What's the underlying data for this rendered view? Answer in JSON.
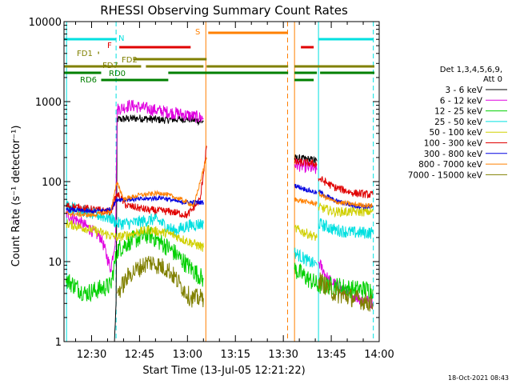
{
  "footer": {
    "date_stamp": "18-Oct-2021 08:43"
  },
  "chart_data": {
    "type": "line",
    "title": "RHESSI Observing Summary Count Rates",
    "xlabel": "Start Time (13-Jul-05 12:21:22)",
    "ylabel": "Count Rate (s⁻¹ detector⁻¹)",
    "y_scale": "log",
    "ylim": [
      1,
      10000
    ],
    "xlim": [
      "12:21:22",
      "14:00:00"
    ],
    "x_ticks": [
      "12:30",
      "12:45",
      "13:00",
      "13:15",
      "13:30",
      "13:45",
      "14:00"
    ],
    "y_ticks": [
      {
        "value": 1,
        "label": "1"
      },
      {
        "value": 10,
        "label": "10"
      },
      {
        "value": 100,
        "label": "100"
      },
      {
        "value": 1000,
        "label": "1000"
      },
      {
        "value": 10000,
        "label": "10000"
      }
    ],
    "legend": {
      "position": "right",
      "header": [
        "Det 1,3,4,5,6,9,",
        "Att 0"
      ],
      "entries": [
        {
          "label": "3 - 6 keV",
          "color": "#000000"
        },
        {
          "label": "6 - 12 keV",
          "color": "#e000e0"
        },
        {
          "label": "12 - 25 keV",
          "color": "#00d000"
        },
        {
          "label": "25 - 50 keV",
          "color": "#00e0e0"
        },
        {
          "label": "50 - 100 keV",
          "color": "#d0d000"
        },
        {
          "label": "100 - 300 keV",
          "color": "#e00000"
        },
        {
          "label": "300 - 800 keV",
          "color": "#0000e0"
        },
        {
          "label": "800 - 7000 keV",
          "color": "#ff8000"
        },
        {
          "label": "7000 - 15000 keV",
          "color": "#808000"
        }
      ]
    },
    "series": [
      {
        "name": "3 - 6 keV",
        "color": "#000000",
        "noise": 0.05,
        "segments": [
          [
            [
              "12:37:10",
              1
            ],
            [
              "12:37:40",
              3
            ],
            [
              "12:38:00",
              600
            ],
            [
              "12:45:00",
              620
            ],
            [
              "12:52:00",
              590
            ],
            [
              "13:00:00",
              610
            ],
            [
              "13:05:00",
              560
            ]
          ],
          [
            [
              "13:33:30",
              195
            ],
            [
              "13:38:00",
              190
            ],
            [
              "13:40:30",
              180
            ]
          ]
        ]
      },
      {
        "name": "6 - 12 keV",
        "color": "#e000e0",
        "noise": 0.08,
        "segments": [
          [
            [
              "12:22:00",
              40
            ],
            [
              "12:27:00",
              30
            ],
            [
              "12:33:00",
              20
            ],
            [
              "12:36:00",
              8
            ],
            [
              "12:37:30",
              20
            ],
            [
              "12:38:00",
              800
            ],
            [
              "12:42:00",
              900
            ],
            [
              "12:50:00",
              780
            ],
            [
              "12:58:00",
              700
            ],
            [
              "13:05:00",
              620
            ]
          ],
          [
            [
              "13:33:30",
              165
            ],
            [
              "13:38:00",
              150
            ],
            [
              "13:40:30",
              140
            ]
          ],
          [
            [
              "13:41:00",
              10
            ],
            [
              "13:44:00",
              6
            ],
            [
              "13:50:00",
              4
            ],
            [
              "13:58:00",
              3
            ]
          ]
        ]
      },
      {
        "name": "12 - 25 keV",
        "color": "#00d000",
        "noise": 0.12,
        "segments": [
          [
            [
              "12:22:00",
              6
            ],
            [
              "12:28:00",
              4
            ],
            [
              "12:36:00",
              5
            ],
            [
              "12:38:00",
              14
            ],
            [
              "12:42:00",
              18
            ],
            [
              "12:48:00",
              22
            ],
            [
              "12:55:00",
              14
            ],
            [
              "13:00:00",
              9
            ],
            [
              "13:05:00",
              6
            ]
          ],
          [
            [
              "13:33:30",
              8
            ],
            [
              "13:38:00",
              6
            ],
            [
              "13:41:00",
              5
            ],
            [
              "13:46:00",
              5
            ],
            [
              "13:52:00",
              4.5
            ],
            [
              "13:58:00",
              4.5
            ]
          ]
        ]
      },
      {
        "name": "25 - 50 keV",
        "color": "#00e0e0",
        "noise": 0.08,
        "segments": [
          [
            [
              "12:22:00",
              50
            ],
            [
              "12:30:00",
              40
            ],
            [
              "12:36:00",
              35
            ],
            [
              "12:38:00",
              30
            ],
            [
              "12:42:00",
              30
            ],
            [
              "12:50:00",
              34
            ],
            [
              "12:56:00",
              24
            ],
            [
              "13:00:00",
              28
            ],
            [
              "13:05:00",
              30
            ]
          ],
          [
            [
              "13:33:30",
              13
            ],
            [
              "13:38:00",
              10
            ],
            [
              "13:40:30",
              9
            ]
          ],
          [
            [
              "13:41:00",
              30
            ],
            [
              "13:46:00",
              25
            ],
            [
              "13:52:00",
              23
            ],
            [
              "13:58:00",
              23
            ]
          ]
        ]
      },
      {
        "name": "50 - 100 keV",
        "color": "#d0d000",
        "noise": 0.06,
        "segments": [
          [
            [
              "12:22:00",
              30
            ],
            [
              "12:30:00",
              25
            ],
            [
              "12:38:00",
              20
            ],
            [
              "12:42:00",
              22
            ],
            [
              "12:48:00",
              25
            ],
            [
              "12:55:00",
              22
            ],
            [
              "13:00:00",
              18
            ],
            [
              "13:05:00",
              15
            ]
          ],
          [
            [
              "13:33:30",
              26
            ],
            [
              "13:38:00",
              22
            ],
            [
              "13:40:30",
              20
            ]
          ],
          [
            [
              "13:41:00",
              48
            ],
            [
              "13:46:00",
              42
            ],
            [
              "13:52:00",
              42
            ],
            [
              "13:58:00",
              42
            ]
          ]
        ]
      },
      {
        "name": "100 - 300 keV",
        "color": "#e00000",
        "noise": 0.05,
        "segments": [
          [
            [
              "12:22:00",
              50
            ],
            [
              "12:30:00",
              45
            ],
            [
              "12:36:00",
              42
            ],
            [
              "12:38:00",
              70
            ],
            [
              "12:41:00",
              50
            ],
            [
              "12:48:00",
              44
            ],
            [
              "12:55:00",
              42
            ],
            [
              "13:00:00",
              38
            ],
            [
              "13:04:00",
              60
            ],
            [
              "13:06:00",
              280
            ]
          ],
          [
            [
              "13:33:30",
              175
            ],
            [
              "13:38:00",
              170
            ],
            [
              "13:40:30",
              165
            ]
          ],
          [
            [
              "13:41:00",
              110
            ],
            [
              "13:46:00",
              85
            ],
            [
              "13:52:00",
              72
            ],
            [
              "13:58:00",
              68
            ]
          ]
        ]
      },
      {
        "name": "300 - 800 keV",
        "color": "#0000e0",
        "noise": 0.03,
        "segments": [
          [
            [
              "12:22:00",
              45
            ],
            [
              "12:30:00",
              42
            ],
            [
              "12:36:00",
              45
            ],
            [
              "12:38:00",
              60
            ],
            [
              "12:45:00",
              60
            ],
            [
              "12:52:00",
              63
            ],
            [
              "12:58:00",
              55
            ],
            [
              "13:05:00",
              55
            ]
          ],
          [
            [
              "13:33:30",
              90
            ],
            [
              "13:37:00",
              80
            ],
            [
              "13:40:30",
              72
            ]
          ],
          [
            [
              "13:41:00",
              75
            ],
            [
              "13:46:00",
              58
            ],
            [
              "13:52:00",
              50
            ],
            [
              "13:58:00",
              48
            ]
          ]
        ]
      },
      {
        "name": "800 - 7000 keV",
        "color": "#ff8000",
        "noise": 0.03,
        "segments": [
          [
            [
              "12:22:00",
              40
            ],
            [
              "12:30:00",
              38
            ],
            [
              "12:36:00",
              42
            ],
            [
              "12:38:00",
              100
            ],
            [
              "12:40:00",
              60
            ],
            [
              "12:45:00",
              68
            ],
            [
              "12:52:00",
              72
            ],
            [
              "12:58:00",
              60
            ],
            [
              "13:02:00",
              50
            ],
            [
              "13:06:00",
              200
            ]
          ],
          [
            [
              "13:33:30",
              60
            ],
            [
              "13:38:00",
              55
            ],
            [
              "13:40:30",
              53
            ]
          ],
          [
            [
              "13:41:00",
              70
            ],
            [
              "13:46:00",
              56
            ],
            [
              "13:52:00",
              52
            ],
            [
              "13:58:00",
              50
            ]
          ]
        ]
      },
      {
        "name": "7000 - 15000 keV",
        "color": "#808000",
        "noise": 0.12,
        "segments": [
          [
            [
              "12:38:00",
              4
            ],
            [
              "12:42:00",
              7
            ],
            [
              "12:48:00",
              10
            ],
            [
              "12:54:00",
              8
            ],
            [
              "12:58:00",
              5
            ],
            [
              "13:01:00",
              3.5
            ],
            [
              "13:05:00",
              3.5
            ]
          ],
          [
            [
              "13:41:00",
              6
            ],
            [
              "13:46:00",
              4
            ],
            [
              "13:52:00",
              3.5
            ],
            [
              "13:58:00",
              3
            ]
          ]
        ]
      }
    ],
    "vertical_markers": [
      {
        "time": "12:22:10",
        "color": "#00e0e0",
        "style": "solid"
      },
      {
        "time": "12:37:40",
        "color": "#00e0e0",
        "style": "dashed"
      },
      {
        "time": "13:05:45",
        "color": "#ff8000",
        "style": "solid"
      },
      {
        "time": "13:31:20",
        "color": "#ff8000",
        "style": "dashed"
      },
      {
        "time": "13:33:30",
        "color": "#ff8000",
        "style": "solid"
      },
      {
        "time": "13:41:00",
        "color": "#00e0e0",
        "style": "solid"
      },
      {
        "time": "13:58:10",
        "color": "#00e0e0",
        "style": "dashed"
      }
    ],
    "status_bars": [
      {
        "label": "N",
        "color": "#00e0e0",
        "level": 1,
        "segments": [
          [
            "12:21:22",
            "12:37:40"
          ],
          [
            "13:41:00",
            "13:58:10"
          ]
        ]
      },
      {
        "label": "F",
        "color": "#e00000",
        "level": 2,
        "segments": [
          [
            "12:38:40",
            "13:01:00"
          ],
          [
            "13:35:30",
            "13:39:30"
          ]
        ]
      },
      {
        "label": "S",
        "color": "#ff8000",
        "level": 0,
        "segments": [
          [
            "13:06:30",
            "13:31:20"
          ]
        ]
      },
      {
        "label": "FD1",
        "color": "#808000",
        "level": 3,
        "segments": [
          [
            "12:32:00",
            "12:32:20"
          ]
        ]
      },
      {
        "label": "FD2",
        "color": "#808000",
        "level": 4,
        "segments": [
          [
            "12:43:00",
            "13:06:00"
          ]
        ]
      },
      {
        "label": "FD7",
        "color": "#808000",
        "level": 5,
        "segments": [
          [
            "12:21:22",
            "12:45:30"
          ],
          [
            "12:47:00",
            "13:05:00"
          ],
          [
            "13:06:00",
            "13:31:30"
          ],
          [
            "13:33:30",
            "13:58:30"
          ]
        ]
      },
      {
        "label": "RD0",
        "color": "#008000",
        "level": 6,
        "segments": [
          [
            "12:21:22",
            "12:33:00"
          ],
          [
            "12:54:00",
            "13:31:30"
          ],
          [
            "13:33:30",
            "13:40:30"
          ],
          [
            "13:41:30",
            "13:58:30"
          ]
        ]
      },
      {
        "label": "RD6",
        "color": "#008000",
        "level": 7,
        "segments": [
          [
            "12:33:00",
            "12:54:00"
          ],
          [
            "13:33:30",
            "13:39:30"
          ]
        ]
      }
    ]
  }
}
